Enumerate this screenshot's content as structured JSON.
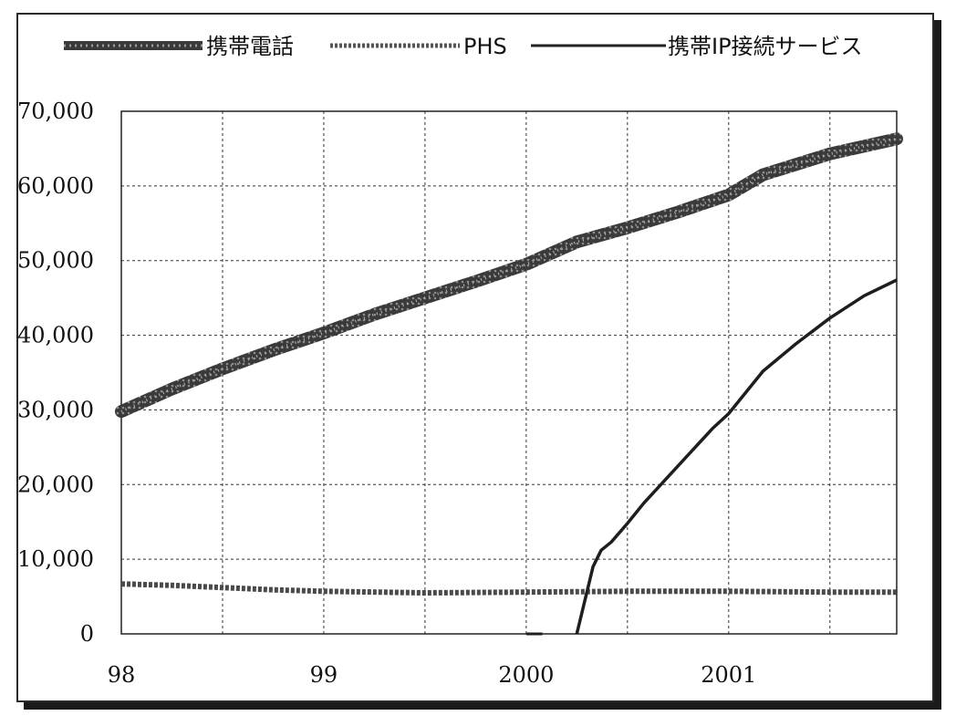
{
  "chart_data": {
    "type": "line",
    "title": "",
    "xlabel": "",
    "ylabel": "",
    "x_ticks": [
      "98",
      "99",
      "2000",
      "2001"
    ],
    "y_ticks": [
      "0",
      "10,000",
      "20,000",
      "30,000",
      "40,000",
      "50,000",
      "60,000",
      "70,000"
    ],
    "ylim": [
      0,
      70000
    ],
    "xlim": [
      1998.0,
      2001.83
    ],
    "grid": true,
    "legend_position": "top",
    "series": [
      {
        "name": "携帯電話",
        "style": "thick-textured",
        "color": "#3a3a3a",
        "points": [
          [
            1998.0,
            29800
          ],
          [
            1998.25,
            32800
          ],
          [
            1998.5,
            35500
          ],
          [
            1998.75,
            38000
          ],
          [
            1999.0,
            40300
          ],
          [
            1999.25,
            42800
          ],
          [
            1999.5,
            45000
          ],
          [
            1999.75,
            47200
          ],
          [
            2000.0,
            49500
          ],
          [
            2000.25,
            52500
          ],
          [
            2000.5,
            54400
          ],
          [
            2000.75,
            56500
          ],
          [
            2001.0,
            58800
          ],
          [
            2001.17,
            61500
          ],
          [
            2001.5,
            64300
          ],
          [
            2001.83,
            66300
          ]
        ]
      },
      {
        "name": "PHS",
        "style": "dotted",
        "color": "#555555",
        "points": [
          [
            1998.0,
            6700
          ],
          [
            1998.25,
            6500
          ],
          [
            1998.5,
            6200
          ],
          [
            1998.75,
            5900
          ],
          [
            1999.0,
            5700
          ],
          [
            1999.5,
            5500
          ],
          [
            2000.0,
            5600
          ],
          [
            2000.5,
            5700
          ],
          [
            2001.0,
            5700
          ],
          [
            2001.5,
            5600
          ],
          [
            2001.83,
            5600
          ]
        ]
      },
      {
        "name": "携帯IP接続サービス",
        "style": "solid",
        "color": "#222222",
        "points": [
          [
            2000.25,
            0
          ],
          [
            2000.29,
            4500
          ],
          [
            2000.33,
            9000
          ],
          [
            2000.37,
            11200
          ],
          [
            2000.42,
            12300
          ],
          [
            2000.5,
            14800
          ],
          [
            2000.58,
            17500
          ],
          [
            2000.75,
            22500
          ],
          [
            2000.92,
            27500
          ],
          [
            2001.0,
            29500
          ],
          [
            2001.17,
            35200
          ],
          [
            2001.33,
            38800
          ],
          [
            2001.5,
            42300
          ],
          [
            2001.67,
            45300
          ],
          [
            2001.83,
            47400
          ]
        ]
      }
    ],
    "extra_marks": [
      {
        "series": "携帯IP接続サービス",
        "points": [
          [
            2000.0,
            0
          ],
          [
            2000.08,
            0
          ]
        ]
      }
    ]
  }
}
